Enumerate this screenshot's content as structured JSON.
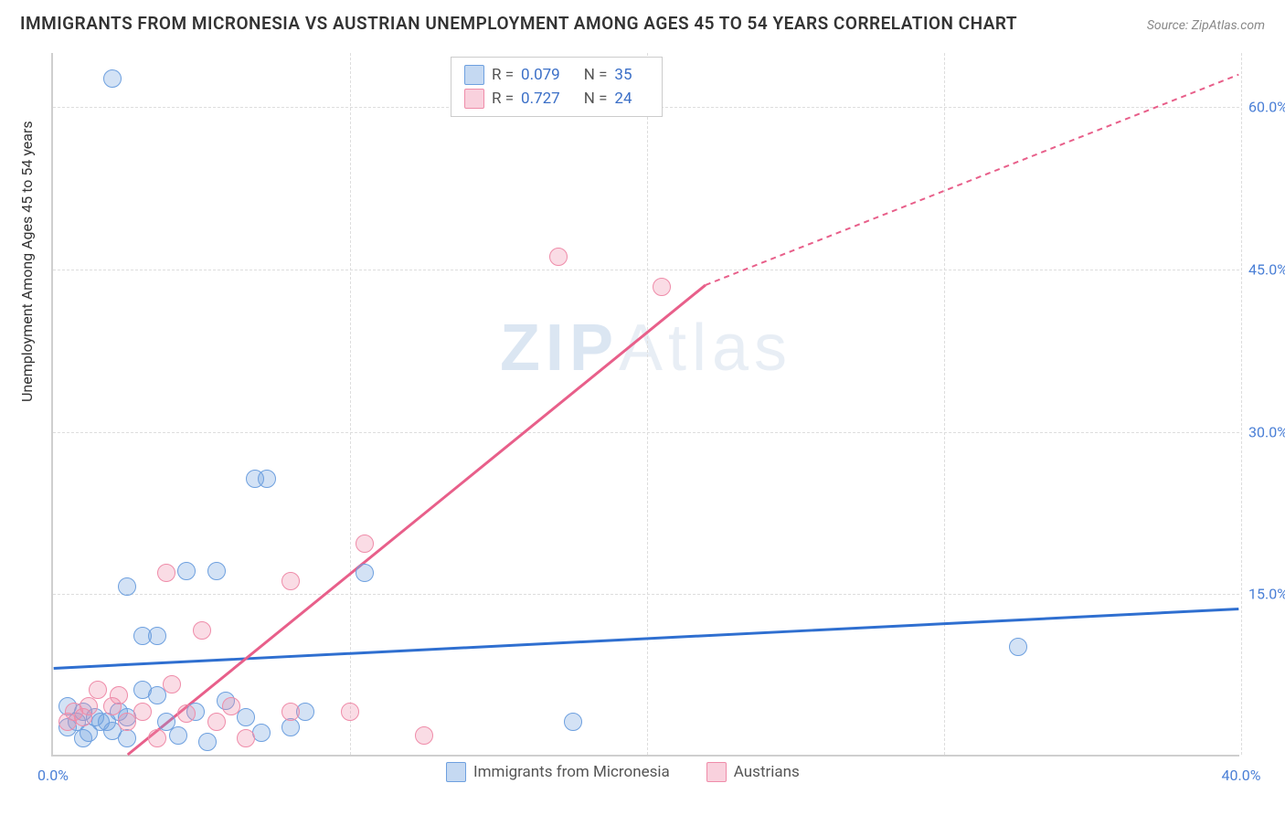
{
  "title": "IMMIGRANTS FROM MICRONESIA VS AUSTRIAN UNEMPLOYMENT AMONG AGES 45 TO 54 YEARS CORRELATION CHART",
  "source": "Source: ZipAtlas.com",
  "watermark_bold": "ZIP",
  "watermark_light": "Atlas",
  "y_axis_label": "Unemployment Among Ages 45 to 54 years",
  "chart": {
    "type": "scatter",
    "xlim": [
      0,
      40
    ],
    "ylim": [
      0,
      65
    ],
    "x_ticks": [
      0,
      40
    ],
    "y_ticks": [
      15,
      30,
      45,
      60
    ],
    "x_tick_labels": [
      "0.0%",
      "40.0%"
    ],
    "y_tick_labels": [
      "15.0%",
      "30.0%",
      "45.0%",
      "60.0%"
    ],
    "grid_color": "#dddddd",
    "background_color": "#ffffff",
    "axis_label_color": "#4a7fd6",
    "series": [
      {
        "name": "Immigrants from Micronesia",
        "color_fill": "rgba(110,160,223,0.3)",
        "color_stroke": "#6ea0df",
        "r_value": "0.079",
        "n_value": "35",
        "trend": {
          "x1": 0,
          "y1": 8.0,
          "x2": 40,
          "y2": 13.5,
          "color": "#2f6fd0",
          "width": 3,
          "dash": "none"
        },
        "points": [
          [
            2.0,
            62.5
          ],
          [
            6.8,
            25.5
          ],
          [
            7.2,
            25.5
          ],
          [
            2.5,
            15.5
          ],
          [
            32.5,
            10.0
          ],
          [
            4.5,
            17.0
          ],
          [
            5.5,
            17.0
          ],
          [
            10.5,
            16.8
          ],
          [
            17.5,
            3.0
          ],
          [
            3.0,
            11.0
          ],
          [
            3.5,
            11.0
          ],
          [
            1.4,
            3.5
          ],
          [
            1.8,
            3.0
          ],
          [
            2.2,
            4.0
          ],
          [
            2.5,
            1.5
          ],
          [
            3.0,
            6.0
          ],
          [
            3.5,
            5.5
          ],
          [
            3.8,
            3.0
          ],
          [
            4.2,
            1.8
          ],
          [
            4.8,
            4.0
          ],
          [
            5.2,
            1.2
          ],
          [
            5.8,
            5.0
          ],
          [
            6.5,
            3.5
          ],
          [
            7.0,
            2.0
          ],
          [
            8.0,
            2.5
          ],
          [
            8.5,
            4.0
          ],
          [
            1.0,
            4.0
          ],
          [
            1.2,
            2.0
          ],
          [
            1.6,
            3.0
          ],
          [
            2.0,
            2.2
          ],
          [
            0.8,
            3.0
          ],
          [
            0.5,
            4.5
          ],
          [
            0.5,
            2.5
          ],
          [
            1.0,
            1.5
          ],
          [
            2.5,
            3.5
          ]
        ]
      },
      {
        "name": "Austrians",
        "color_fill": "rgba(239,140,169,0.3)",
        "color_stroke": "#ef8ca9",
        "r_value": "0.727",
        "n_value": "24",
        "trend": {
          "x1": 2.5,
          "y1": 0,
          "x2": 22,
          "y2": 43.5,
          "color": "#e85f8a",
          "width": 3,
          "dash": "none",
          "extend": {
            "x1": 22,
            "y1": 43.5,
            "x2": 40,
            "y2": 63.0,
            "dash": "6,5"
          }
        },
        "points": [
          [
            17.0,
            46.0
          ],
          [
            20.5,
            43.2
          ],
          [
            10.5,
            19.5
          ],
          [
            8.0,
            16.0
          ],
          [
            3.8,
            16.8
          ],
          [
            5.0,
            11.5
          ],
          [
            4.0,
            6.5
          ],
          [
            6.0,
            4.5
          ],
          [
            8.0,
            4.0
          ],
          [
            10.0,
            4.0
          ],
          [
            12.5,
            1.8
          ],
          [
            6.5,
            1.5
          ],
          [
            1.5,
            6.0
          ],
          [
            2.0,
            4.5
          ],
          [
            2.5,
            3.0
          ],
          [
            3.0,
            4.0
          ],
          [
            3.5,
            1.5
          ],
          [
            1.0,
            3.5
          ],
          [
            1.2,
            4.5
          ],
          [
            0.7,
            4.0
          ],
          [
            0.5,
            3.0
          ],
          [
            2.2,
            5.5
          ],
          [
            4.5,
            3.8
          ],
          [
            5.5,
            3.0
          ]
        ]
      }
    ]
  },
  "legend_top": {
    "rows": [
      {
        "swatch": "blue",
        "r_label": "R =",
        "r_val": "0.079",
        "n_label": "N =",
        "n_val": "35"
      },
      {
        "swatch": "pink",
        "r_label": "R =",
        "r_val": "0.727",
        "n_label": "N =",
        "n_val": "24"
      }
    ]
  },
  "legend_bottom": {
    "items": [
      {
        "swatch": "blue",
        "label": "Immigrants from Micronesia"
      },
      {
        "swatch": "pink",
        "label": "Austrians"
      }
    ]
  }
}
